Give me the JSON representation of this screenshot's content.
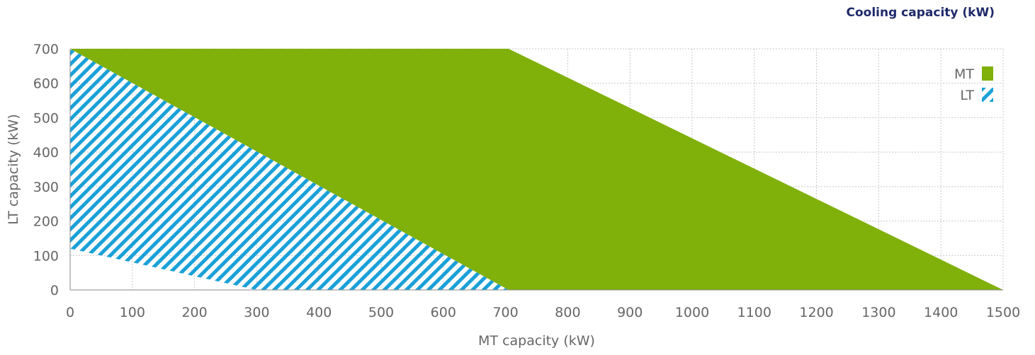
{
  "chart_data": {
    "type": "area",
    "title": "Cooling capacity (kW)",
    "xlabel": "MT capacity (kW)",
    "ylabel": "LT capacity (kW)",
    "xlim": [
      0,
      1500
    ],
    "ylim": [
      0,
      700
    ],
    "x_ticks": [
      0,
      100,
      200,
      300,
      400,
      500,
      600,
      700,
      800,
      900,
      1000,
      1100,
      1200,
      1300,
      1400,
      1500
    ],
    "y_ticks": [
      0,
      100,
      200,
      300,
      400,
      500,
      600,
      700
    ],
    "grid": true,
    "legend_position": "top-right",
    "series": [
      {
        "name": "MT",
        "fill": "solid",
        "color": "#80b00a",
        "polygon": [
          [
            0,
            700
          ],
          [
            705,
            700
          ],
          [
            1500,
            0
          ],
          [
            705,
            0
          ],
          [
            0,
            700
          ]
        ]
      },
      {
        "name": "LT",
        "fill": "hatched",
        "color": "#1aa0d8",
        "polygon": [
          [
            0,
            700
          ],
          [
            0,
            120
          ],
          [
            300,
            0
          ],
          [
            705,
            0
          ],
          [
            0,
            700
          ]
        ]
      }
    ]
  }
}
